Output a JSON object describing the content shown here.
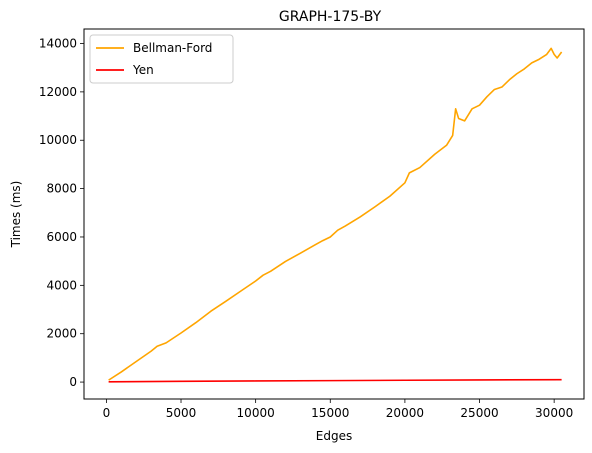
{
  "chart_data": {
    "type": "line",
    "title": "GRAPH-175-BY",
    "xlabel": "Edges",
    "ylabel": "Times (ms)",
    "xlim": [
      -1500,
      32000
    ],
    "ylim": [
      -700,
      14600
    ],
    "xticks": [
      0,
      5000,
      10000,
      15000,
      20000,
      25000,
      30000
    ],
    "yticks": [
      0,
      2000,
      4000,
      6000,
      8000,
      10000,
      12000,
      14000
    ],
    "grid": false,
    "legend_position": "top-left",
    "series": [
      {
        "name": "Bellman-Ford",
        "color": "#ffa500",
        "points": [
          [
            150,
            80
          ],
          [
            1000,
            420
          ],
          [
            2000,
            850
          ],
          [
            3000,
            1280
          ],
          [
            3400,
            1480
          ],
          [
            4000,
            1620
          ],
          [
            5000,
            2030
          ],
          [
            6000,
            2460
          ],
          [
            7000,
            2930
          ],
          [
            8000,
            3340
          ],
          [
            9000,
            3760
          ],
          [
            10000,
            4180
          ],
          [
            10500,
            4420
          ],
          [
            11000,
            4580
          ],
          [
            12000,
            4990
          ],
          [
            13000,
            5330
          ],
          [
            14000,
            5680
          ],
          [
            14500,
            5850
          ],
          [
            15000,
            6000
          ],
          [
            15500,
            6280
          ],
          [
            16000,
            6450
          ],
          [
            17000,
            6830
          ],
          [
            18000,
            7250
          ],
          [
            19000,
            7690
          ],
          [
            20000,
            8240
          ],
          [
            20300,
            8650
          ],
          [
            21000,
            8870
          ],
          [
            22000,
            9420
          ],
          [
            22800,
            9800
          ],
          [
            23200,
            10200
          ],
          [
            23400,
            11300
          ],
          [
            23600,
            10900
          ],
          [
            24000,
            10800
          ],
          [
            24500,
            11300
          ],
          [
            25000,
            11450
          ],
          [
            25500,
            11800
          ],
          [
            26000,
            12100
          ],
          [
            26500,
            12200
          ],
          [
            27000,
            12500
          ],
          [
            27500,
            12750
          ],
          [
            28000,
            12950
          ],
          [
            28500,
            13200
          ],
          [
            29000,
            13350
          ],
          [
            29500,
            13550
          ],
          [
            29800,
            13800
          ],
          [
            30000,
            13550
          ],
          [
            30200,
            13400
          ],
          [
            30500,
            13650
          ]
        ]
      },
      {
        "name": "Yen",
        "color": "#ff0000",
        "points": [
          [
            150,
            10
          ],
          [
            5000,
            30
          ],
          [
            10000,
            45
          ],
          [
            15000,
            60
          ],
          [
            20000,
            75
          ],
          [
            25000,
            90
          ],
          [
            30500,
            100
          ]
        ]
      }
    ]
  }
}
